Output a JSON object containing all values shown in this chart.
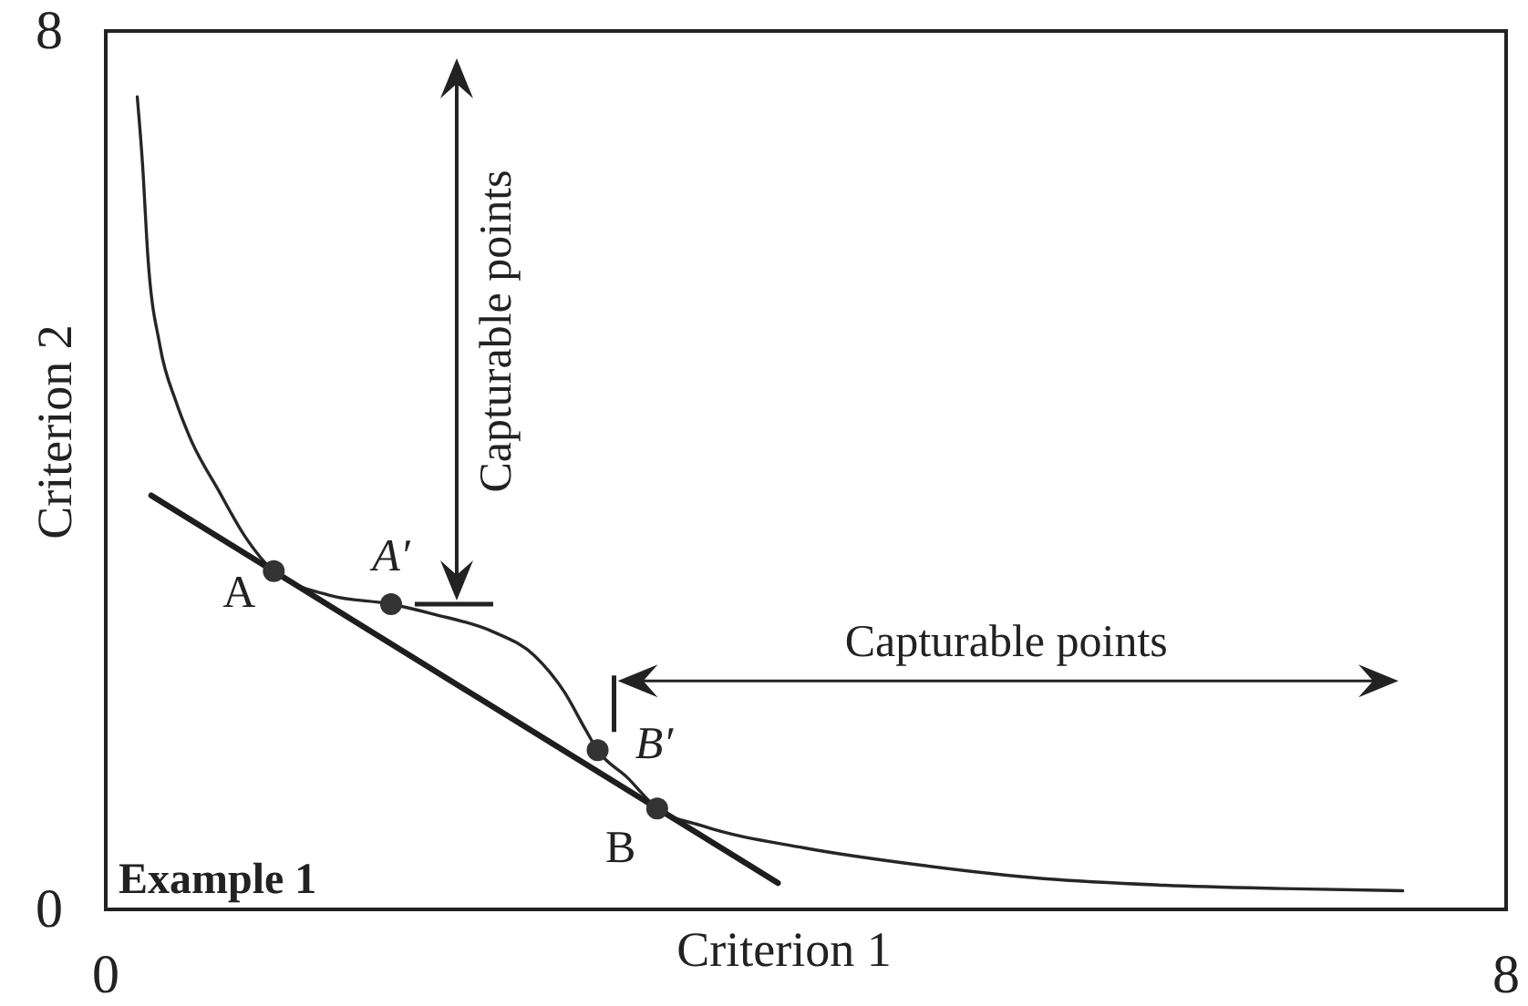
{
  "chart_data": {
    "type": "line",
    "xlabel": "Criterion 1",
    "ylabel": "Criterion 2",
    "xlim": [
      0,
      8
    ],
    "ylim": [
      0,
      8
    ],
    "xticks": [
      0,
      8
    ],
    "yticks": [
      0,
      8
    ],
    "series": [
      {
        "color": "#262626",
        "x": [
          0.18,
          0.21,
          0.24,
          0.31,
          0.4,
          0.48,
          0.65,
          0.79,
          0.96,
          1.28,
          1.63,
          1.87,
          2.21,
          2.45,
          2.62,
          2.74,
          2.81,
          2.98,
          3.15,
          3.41,
          3.99,
          4.67,
          5.36,
          6.05,
          6.72,
          7.41
        ],
        "values": [
          7.4,
          6.79,
          5.96,
          5.13,
          4.63,
          4.3,
          3.8,
          3.41,
          3.08,
          2.86,
          2.78,
          2.69,
          2.53,
          2.31,
          1.98,
          1.64,
          1.45,
          1.2,
          0.92,
          0.76,
          0.56,
          0.4,
          0.28,
          0.22,
          0.19,
          0.17
        ]
      },
      {
        "color": "#1e1e1e",
        "x": [
          0.26,
          3.84
        ],
        "values": [
          3.77,
          0.24
        ]
      },
      {
        "type": "scatter",
        "color": "#333333",
        "marker": "circle",
        "x": [
          0.96,
          1.63,
          2.81,
          3.15
        ],
        "values": [
          3.08,
          2.78,
          1.45,
          0.92
        ]
      }
    ],
    "annotations": [
      {
        "text": "A",
        "x": 0.96,
        "y": 3.08
      },
      {
        "text": "A′",
        "x": 1.63,
        "y": 2.78
      },
      {
        "text": "B′",
        "x": 2.81,
        "y": 1.45
      },
      {
        "text": "B",
        "x": 3.15,
        "y": 0.92
      },
      "Capturable points",
      "Capturable points",
      "Example 1"
    ]
  }
}
